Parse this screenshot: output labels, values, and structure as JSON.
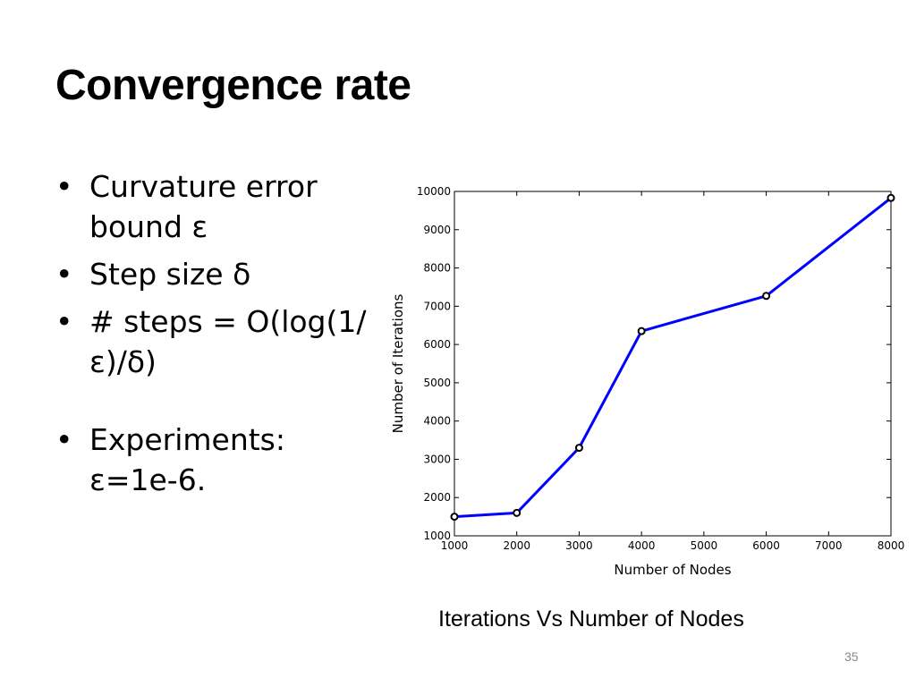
{
  "slide": {
    "title": "Convergence rate",
    "bullets": [
      "Curvature error bound ε",
      "Step size δ",
      "# steps = O(log(1/ε)/δ)",
      "Experiments: ε=1e-6."
    ],
    "caption": "Iterations Vs Number of Nodes",
    "page_number": "35"
  },
  "chart_data": {
    "type": "line",
    "xlabel": "Number of Nodes",
    "ylabel": "Number of Iterations",
    "xlim": [
      1000,
      8000
    ],
    "ylim": [
      1000,
      10000
    ],
    "xticks": [
      1000,
      2000,
      3000,
      4000,
      5000,
      6000,
      7000,
      8000
    ],
    "yticks": [
      1000,
      2000,
      3000,
      4000,
      5000,
      6000,
      7000,
      8000,
      9000,
      10000
    ],
    "grid": false,
    "series": [
      {
        "x": [
          1000,
          2000,
          3000,
          4000,
          6000,
          8000
        ],
        "y": [
          1500,
          1600,
          3300,
          6350,
          7270,
          9830
        ],
        "color": "#0000ff",
        "marker_color": "#000000"
      }
    ]
  }
}
